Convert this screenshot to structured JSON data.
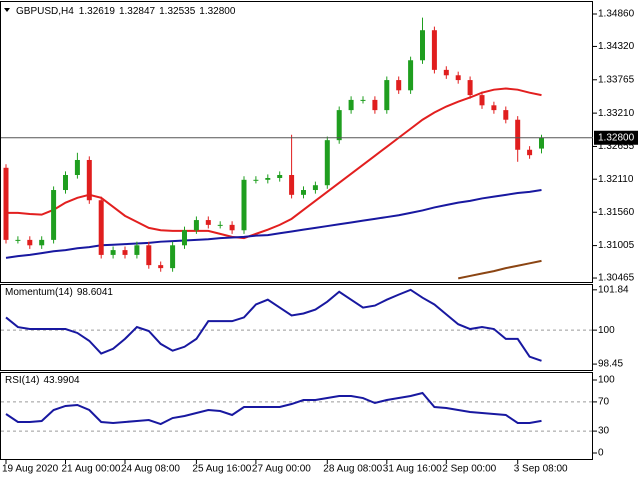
{
  "chart_data": [
    {
      "type": "candlestick",
      "title": "GBPUSD,H4",
      "header_values": [
        1.32619,
        1.32847,
        1.32535,
        {
          "value": 1.328,
          "label": "1.32800"
        }
      ],
      "categories": [
        "19 Aug 2020",
        null,
        null,
        null,
        null,
        "21 Aug 00:00",
        null,
        null,
        null,
        null,
        "24 Aug 08:00",
        null,
        null,
        null,
        null,
        null,
        "25 Aug 16:00",
        null,
        null,
        null,
        null,
        "27 Aug 00:00",
        null,
        null,
        null,
        null,
        null,
        "28 Aug 08:00",
        null,
        null,
        null,
        null,
        "31 Aug 16:00",
        null,
        null,
        null,
        null,
        "2 Sep 00:00",
        null,
        null,
        null,
        null,
        null,
        "3 Sep 08:00",
        null,
        null
      ],
      "open": [
        1.323,
        1.311,
        1.311,
        1.3101,
        1.311,
        1.3193,
        1.3218,
        1.3243,
        1.3176,
        1.3085,
        1.3093,
        1.3085,
        1.3101,
        1.3068,
        1.3063,
        1.3101,
        1.3126,
        1.3143,
        1.3135,
        1.3135,
        1.3126,
        1.321,
        1.321,
        1.3213,
        1.3218,
        1.3185,
        1.3193,
        1.3201,
        1.3276,
        1.3326,
        1.3343,
        1.3343,
        1.3326,
        1.3376,
        1.3359,
        1.3409,
        1.3459,
        1.3393,
        1.3384,
        1.3376,
        1.3351,
        1.3334,
        1.3326,
        1.331,
        1.326,
        1.3262
      ],
      "high": [
        1.3236,
        1.3116,
        1.3116,
        1.3116,
        1.3199,
        1.3224,
        1.3255,
        1.3249,
        1.3182,
        1.3099,
        1.3099,
        1.3107,
        1.3107,
        1.3074,
        1.3107,
        1.3132,
        1.3149,
        1.3149,
        1.3141,
        1.3141,
        1.3216,
        1.3216,
        1.3219,
        1.3224,
        1.3285,
        1.3199,
        1.3207,
        1.3282,
        1.3332,
        1.3349,
        1.3349,
        1.3349,
        1.3382,
        1.3382,
        1.3415,
        1.348,
        1.3465,
        1.3399,
        1.339,
        1.3382,
        1.3357,
        1.334,
        1.3332,
        1.3316,
        1.3266,
        1.3285
      ],
      "low": [
        1.3104,
        1.3104,
        1.3095,
        1.3095,
        1.3104,
        1.3187,
        1.3212,
        1.317,
        1.3079,
        1.3079,
        1.3079,
        1.3079,
        1.3062,
        1.3057,
        1.3057,
        1.3095,
        1.312,
        1.3129,
        1.3129,
        1.312,
        1.312,
        1.3204,
        1.3204,
        1.3207,
        1.3179,
        1.3179,
        1.3187,
        1.3195,
        1.327,
        1.332,
        1.3337,
        1.332,
        1.332,
        1.3353,
        1.3353,
        1.3403,
        1.3387,
        1.3378,
        1.337,
        1.3345,
        1.3328,
        1.332,
        1.3304,
        1.324,
        1.3245,
        1.3254
      ],
      "close": [
        1.311,
        1.311,
        1.3101,
        1.311,
        1.3193,
        1.3218,
        1.3243,
        1.3176,
        1.3085,
        1.3093,
        1.3085,
        1.3101,
        1.3068,
        1.3063,
        1.3101,
        1.3126,
        1.3143,
        1.3135,
        1.3135,
        1.3126,
        1.321,
        1.321,
        1.3213,
        1.3218,
        1.3185,
        1.3193,
        1.3201,
        1.3276,
        1.3326,
        1.3343,
        1.3343,
        1.3326,
        1.3376,
        1.3359,
        1.3409,
        1.3459,
        1.3393,
        1.3384,
        1.3376,
        1.3351,
        1.3334,
        1.3326,
        1.331,
        1.326,
        1.3251,
        1.328
      ],
      "up_color": "#1f9e1f",
      "down_color": "#e01e1e",
      "series": [
        {
          "color": "#e21f1f",
          "values": [
            1.3155,
            1.3155,
            1.3153,
            1.3152,
            1.316,
            1.3172,
            1.318,
            1.3185,
            1.318,
            1.3165,
            1.315,
            1.314,
            1.313,
            1.3126,
            1.3125,
            1.3125,
            1.3125,
            1.3125,
            1.312,
            1.3115,
            1.3113,
            1.312,
            1.3127,
            1.3135,
            1.3145,
            1.316,
            1.3175,
            1.319,
            1.3205,
            1.322,
            1.3235,
            1.325,
            1.3265,
            1.328,
            1.3295,
            1.331,
            1.3322,
            1.3332,
            1.334,
            1.3347,
            1.3355,
            1.336,
            1.3362,
            1.336,
            1.3355,
            1.3351
          ]
        },
        {
          "color": "#1818a0",
          "values": [
            1.308,
            1.3083,
            1.3085,
            1.3088,
            1.3091,
            1.3093,
            1.3096,
            1.3098,
            1.3101,
            1.3102,
            1.3103,
            1.3104,
            1.3105,
            1.3107,
            1.3108,
            1.3109,
            1.311,
            1.3111,
            1.3113,
            1.3114,
            1.3115,
            1.3117,
            1.3118,
            1.3121,
            1.3124,
            1.3127,
            1.313,
            1.3133,
            1.3136,
            1.3139,
            1.3142,
            1.3145,
            1.3148,
            1.3151,
            1.3155,
            1.3159,
            1.3164,
            1.3168,
            1.3172,
            1.3175,
            1.3179,
            1.3182,
            1.3185,
            1.3188,
            1.319,
            1.3193
          ]
        },
        {
          "color": "#8b4513",
          "values": [
            null,
            null,
            null,
            null,
            null,
            null,
            null,
            null,
            null,
            null,
            null,
            null,
            null,
            null,
            null,
            null,
            null,
            null,
            null,
            null,
            null,
            null,
            null,
            null,
            null,
            null,
            null,
            null,
            null,
            null,
            null,
            null,
            null,
            null,
            null,
            null,
            null,
            null,
            1.3046,
            1.305,
            1.3054,
            1.3058,
            1.3063,
            1.3067,
            1.3071,
            1.3075
          ]
        }
      ],
      "last_price": {
        "value": 1.328,
        "label": "1.32800"
      },
      "ylim": [
        1.30399,
        1.35043
      ],
      "yticks": [
        {
          "value": 1.3486,
          "label": "1.34860"
        },
        {
          "value": 1.3432,
          "label": "1.34320"
        },
        1.33765,
        {
          "value": 1.3321,
          "label": "1.33210"
        },
        1.32655,
        {
          "value": 1.3211,
          "label": "1.32110"
        },
        {
          "value": 1.3156,
          "label": "1.31560"
        },
        1.31005,
        1.30465
      ]
    },
    {
      "type": "line",
      "title": "Momentum(14)",
      "last_value": 98.6041,
      "color": "#1818a0",
      "values": [
        100.58,
        100.14,
        100.05,
        100.05,
        100.05,
        100.05,
        99.87,
        99.51,
        98.93,
        99.15,
        99.6,
        100.14,
        99.96,
        99.37,
        99.06,
        99.24,
        99.6,
        100.41,
        100.41,
        100.41,
        100.58,
        101.17,
        101.39,
        101.03,
        100.67,
        100.76,
        100.94,
        101.3,
        101.75,
        101.39,
        101.03,
        101.12,
        101.39,
        101.62,
        101.84,
        101.48,
        101.17,
        100.72,
        100.27,
        100.05,
        100.14,
        100.05,
        99.6,
        99.6,
        98.79,
        98.6
      ],
      "ylim": [
        98.18,
        102.06
      ],
      "yticks": [
        101.84,
        100,
        98.45
      ],
      "levels": [
        100
      ]
    },
    {
      "type": "line",
      "title": "RSI(14)",
      "last_value": 43.9904,
      "color": "#1818a0",
      "values": [
        53.4,
        42.5,
        42.5,
        43.8,
        58.9,
        64.4,
        65.8,
        58.9,
        42.5,
        41.1,
        42.5,
        43.8,
        45.2,
        39.7,
        47.9,
        50.7,
        54.8,
        58.9,
        57.5,
        52.1,
        63,
        63,
        63,
        63,
        67.1,
        72.6,
        72.6,
        75.3,
        78.1,
        78.1,
        75.3,
        68.5,
        72.6,
        75.3,
        78.1,
        82.2,
        63,
        61.6,
        58.9,
        56.2,
        54.8,
        53.4,
        52.1,
        41.1,
        41.1,
        43.99
      ],
      "ylim": [
        -9.6,
        109.6
      ],
      "yticks": [
        100,
        70,
        30,
        0
      ],
      "levels": [
        70,
        30
      ]
    }
  ]
}
